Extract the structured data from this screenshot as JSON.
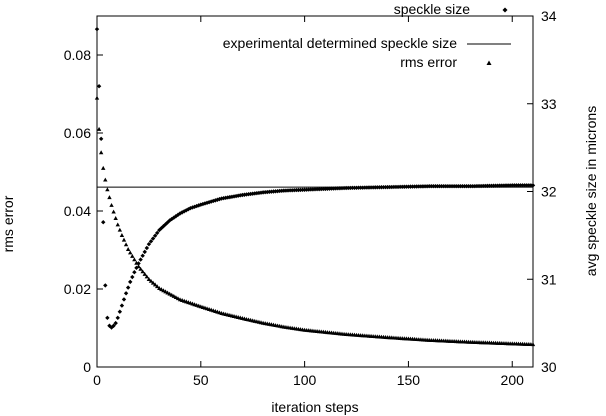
{
  "chart_data": {
    "type": "scatter",
    "xlabel": "iteration steps",
    "ylabel_left": "rms error",
    "ylabel_right": "avg speckle size in microns",
    "xlim": [
      0,
      210
    ],
    "ylim_left": [
      0,
      0.09
    ],
    "ylim_right": [
      30,
      34
    ],
    "x_ticks": [
      "0",
      "50",
      "100",
      "150",
      "200"
    ],
    "y_left_ticks": [
      "0",
      "0.02",
      "0.04",
      "0.06",
      "0.08"
    ],
    "y_right_ticks": [
      "30",
      "31",
      "32",
      "33",
      "34"
    ],
    "grid": false,
    "legend_position": "top-right",
    "legend": [
      "speckle size",
      "experimental determined speckle size",
      "rms error"
    ],
    "series": [
      {
        "name": "speckle size",
        "axis": "right",
        "marker": "diamond",
        "x": [
          0,
          1,
          2,
          3,
          4,
          5,
          6,
          7,
          8,
          9,
          10,
          12,
          14,
          16,
          18,
          20,
          25,
          30,
          35,
          40,
          45,
          50,
          60,
          70,
          80,
          90,
          100,
          120,
          140,
          160,
          180,
          200,
          210
        ],
        "y": [
          33.85,
          33.2,
          32.6,
          31.65,
          30.93,
          30.56,
          30.47,
          30.45,
          30.47,
          30.5,
          30.56,
          30.7,
          30.84,
          30.97,
          31.08,
          31.18,
          31.4,
          31.56,
          31.67,
          31.75,
          31.81,
          31.85,
          31.92,
          31.96,
          31.99,
          32.01,
          32.02,
          32.04,
          32.05,
          32.06,
          32.06,
          32.07,
          32.07
        ]
      },
      {
        "name": "experimental determined speckle size",
        "axis": "right",
        "marker": "line",
        "x": [
          0,
          210
        ],
        "y": [
          32.05,
          32.05
        ]
      },
      {
        "name": "rms error",
        "axis": "left",
        "marker": "triangle",
        "x": [
          0,
          1,
          2,
          3,
          4,
          5,
          6,
          7,
          8,
          10,
          12,
          15,
          20,
          25,
          30,
          40,
          50,
          60,
          70,
          80,
          90,
          100,
          120,
          140,
          160,
          180,
          200,
          210
        ],
        "y": [
          0.069,
          0.061,
          0.055,
          0.051,
          0.048,
          0.0455,
          0.0435,
          0.0415,
          0.0398,
          0.0365,
          0.0338,
          0.0302,
          0.0258,
          0.0225,
          0.0202,
          0.0173,
          0.0155,
          0.0138,
          0.0125,
          0.0113,
          0.0103,
          0.0095,
          0.0084,
          0.0076,
          0.0069,
          0.0064,
          0.006,
          0.0058
        ]
      }
    ]
  }
}
